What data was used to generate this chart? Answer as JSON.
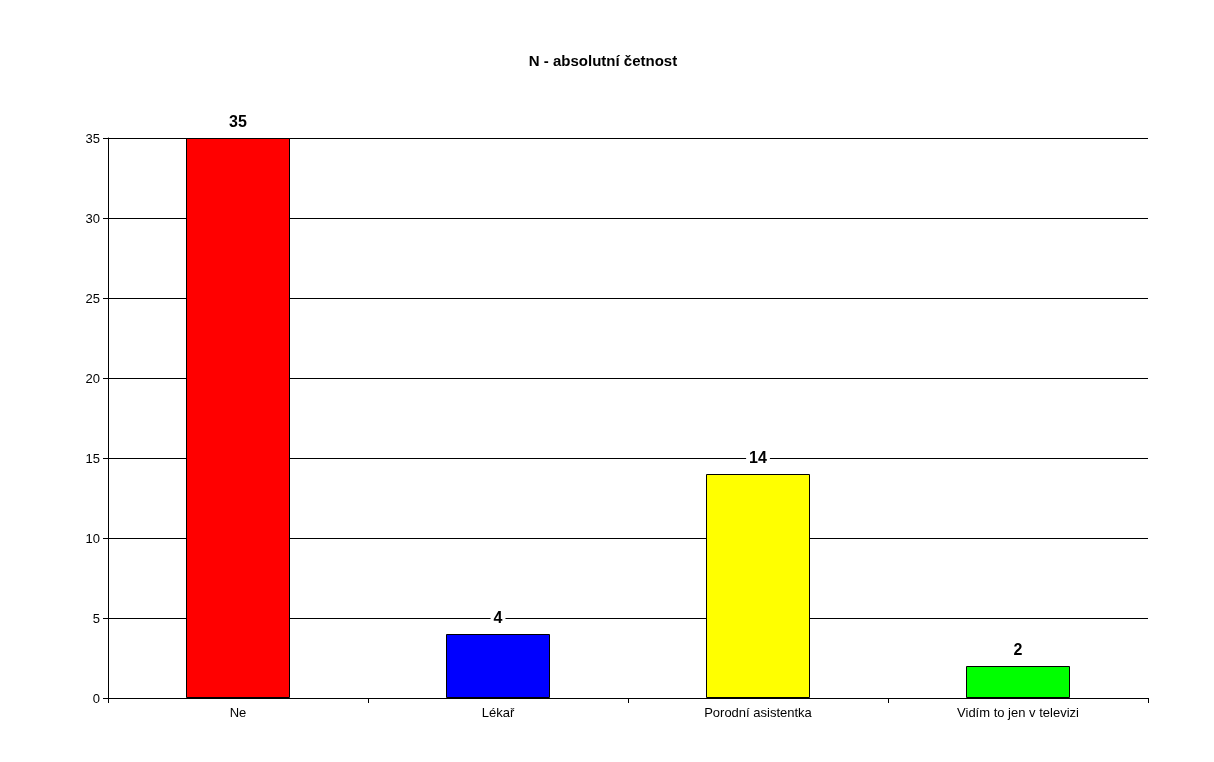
{
  "chart_data": {
    "type": "bar",
    "title": "N - absolutní četnost",
    "categories": [
      "Ne",
      "Lékař",
      "Porodní asistentka",
      "Vidím to jen v televizi"
    ],
    "values": [
      35,
      4,
      14,
      2
    ],
    "colors": [
      "#ff0000",
      "#0000ff",
      "#ffff00",
      "#00ff00"
    ],
    "ylim": [
      0,
      35
    ],
    "yticks": [
      0,
      5,
      10,
      15,
      20,
      25,
      30,
      35
    ],
    "grid": "y",
    "data_labels": true
  }
}
